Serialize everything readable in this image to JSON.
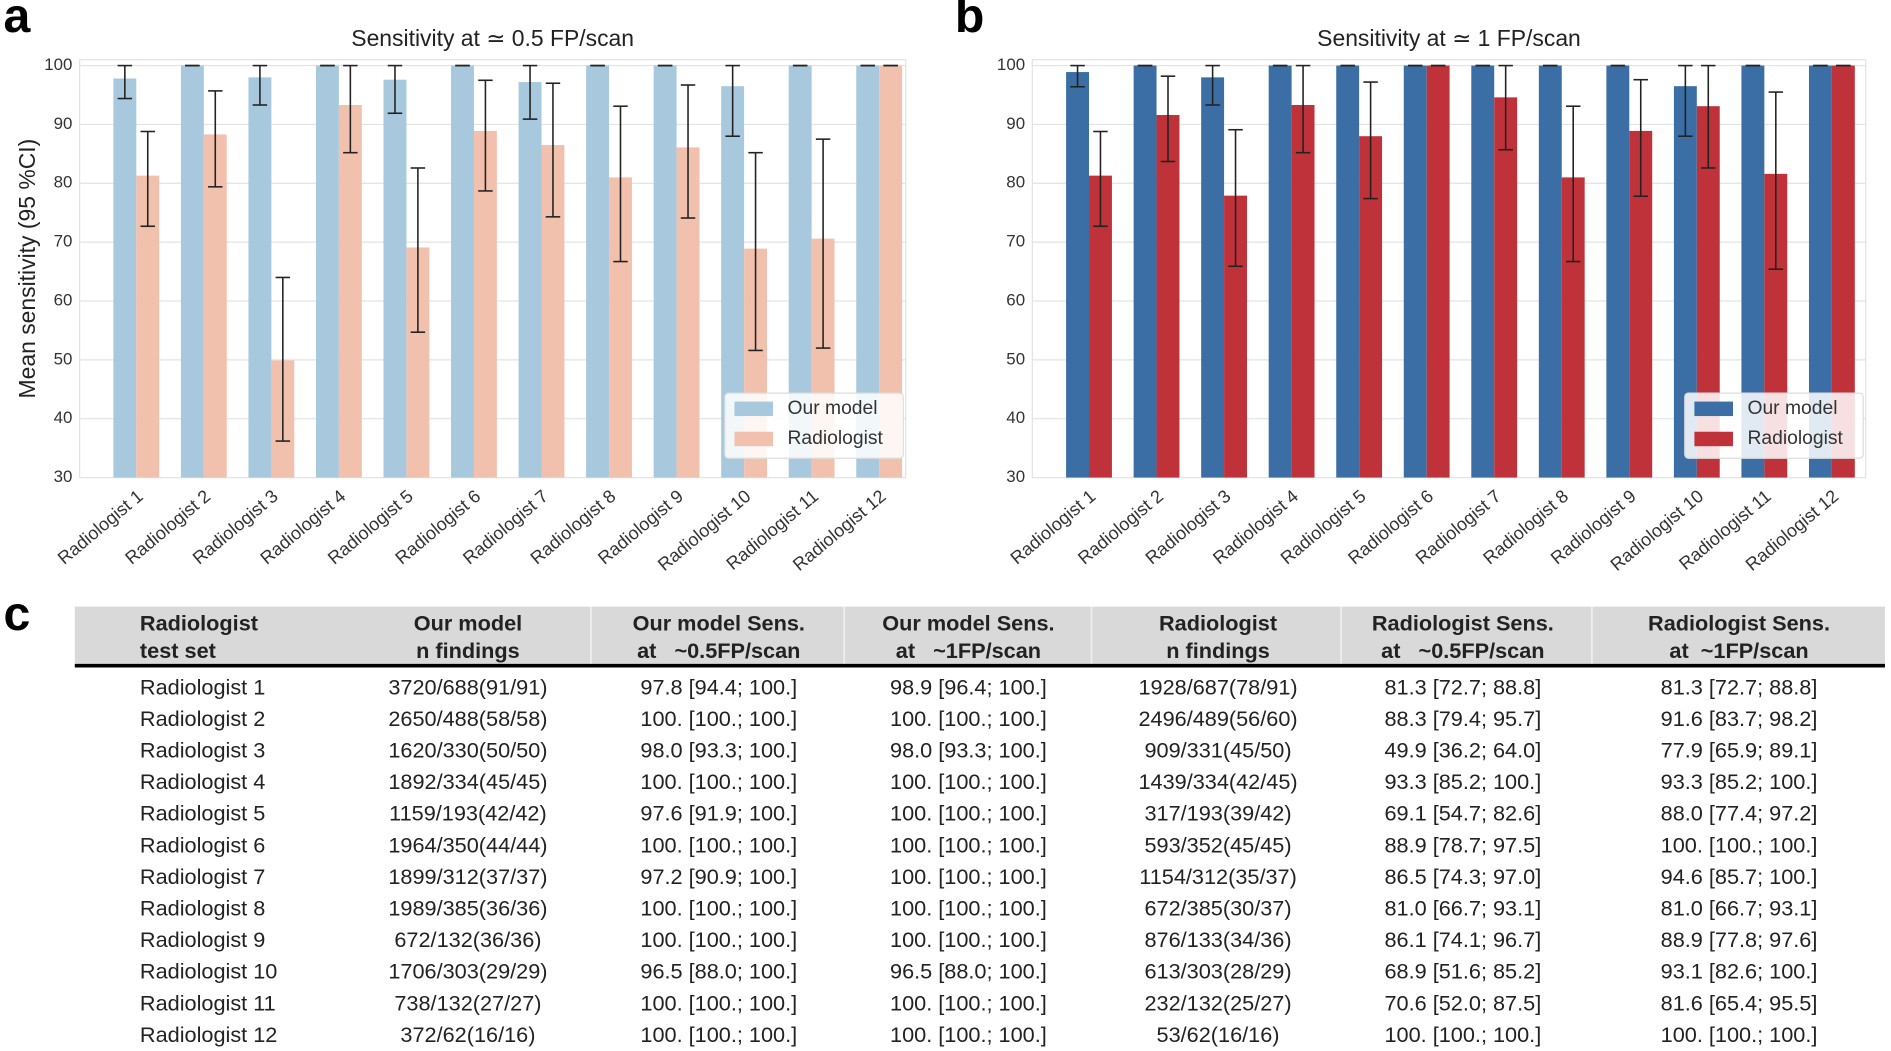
{
  "chart_data": [
    {
      "type": "bar",
      "panel_label": "a",
      "title": "Sensitivity at ≃ 0.5 FP/scan",
      "ylabel": "Mean sensitivity (95 %CI)",
      "categories": [
        "Radiologist 1",
        "Radiologist 2",
        "Radiologist 3",
        "Radiologist 4",
        "Radiologist 5",
        "Radiologist 6",
        "Radiologist 7",
        "Radiologist 8",
        "Radiologist 9",
        "Radiologist 10",
        "Radiologist 11",
        "Radiologist 12"
      ],
      "series": [
        {
          "name": "Our model",
          "color": "#a7c8dd",
          "values": [
            97.8,
            100,
            98.0,
            100,
            97.6,
            100,
            97.2,
            100,
            100,
            96.5,
            100,
            100
          ],
          "ci_low": [
            94.4,
            100,
            93.3,
            100,
            91.9,
            100,
            90.9,
            100,
            100,
            88.0,
            100,
            100
          ],
          "ci_high": [
            100,
            100,
            100,
            100,
            100,
            100,
            100,
            100,
            100,
            100,
            100,
            100
          ]
        },
        {
          "name": "Radiologist",
          "color": "#f2c1ad",
          "values": [
            81.3,
            88.3,
            49.9,
            93.3,
            69.1,
            88.9,
            86.5,
            81.0,
            86.1,
            68.9,
            70.6,
            100
          ],
          "ci_low": [
            72.7,
            79.4,
            36.2,
            85.2,
            54.7,
            78.7,
            74.3,
            66.7,
            74.1,
            51.6,
            52.0,
            100
          ],
          "ci_high": [
            88.8,
            95.7,
            64.0,
            100,
            82.6,
            97.5,
            97.0,
            93.1,
            96.7,
            85.2,
            87.5,
            100
          ]
        }
      ],
      "ylim": [
        30,
        101
      ],
      "yticks": [
        30,
        40,
        50,
        60,
        70,
        80,
        90,
        100
      ],
      "grid": true,
      "legend": "lower right"
    },
    {
      "type": "bar",
      "panel_label": "b",
      "title": "Sensitivity at ≃ 1 FP/scan",
      "categories": [
        "Radiologist 1",
        "Radiologist 2",
        "Radiologist 3",
        "Radiologist 4",
        "Radiologist 5",
        "Radiologist 6",
        "Radiologist 7",
        "Radiologist 8",
        "Radiologist 9",
        "Radiologist 10",
        "Radiologist 11",
        "Radiologist 12"
      ],
      "series": [
        {
          "name": "Our model",
          "color": "#3a6ea5",
          "values": [
            98.9,
            100,
            98.0,
            100,
            100,
            100,
            100,
            100,
            100,
            96.5,
            100,
            100
          ],
          "ci_low": [
            96.4,
            100,
            93.3,
            100,
            100,
            100,
            100,
            100,
            100,
            88.0,
            100,
            100
          ],
          "ci_high": [
            100,
            100,
            100,
            100,
            100,
            100,
            100,
            100,
            100,
            100,
            100,
            100
          ]
        },
        {
          "name": "Radiologist",
          "color": "#c0323a",
          "values": [
            81.3,
            91.6,
            77.9,
            93.3,
            88.0,
            100,
            94.6,
            81.0,
            88.9,
            93.1,
            81.6,
            100
          ],
          "ci_low": [
            72.7,
            83.7,
            65.9,
            85.2,
            77.4,
            100,
            85.7,
            66.7,
            77.8,
            82.6,
            65.4,
            100
          ],
          "ci_high": [
            88.8,
            98.2,
            89.1,
            100,
            97.2,
            100,
            100,
            93.1,
            97.6,
            100,
            95.5,
            100
          ]
        }
      ],
      "ylim": [
        30,
        101
      ],
      "yticks": [
        30,
        40,
        50,
        60,
        70,
        80,
        90,
        100
      ],
      "grid": true,
      "legend": "lower right"
    }
  ],
  "table": {
    "panel_label": "c",
    "header": [
      [
        "Radiologist",
        "test set"
      ],
      [
        "Our model",
        "n findings"
      ],
      [
        "Our model Sens.",
        "at   ~0.5FP/scan"
      ],
      [
        "Our model Sens.",
        "at   ~1FP/scan"
      ],
      [
        "Radiologist",
        "n findings"
      ],
      [
        "Radiologist Sens.",
        "at   ~0.5FP/scan"
      ],
      [
        "Radiologist Sens.",
        "at  ~1FP/scan"
      ]
    ],
    "rows": [
      [
        "Radiologist 1",
        "3720/688(91/91)",
        "97.8 [94.4; 100.]",
        "98.9 [96.4; 100.]",
        "1928/687(78/91)",
        "81.3 [72.7; 88.8]",
        "81.3 [72.7; 88.8]"
      ],
      [
        "Radiologist 2",
        "2650/488(58/58)",
        "100. [100.; 100.]",
        "100. [100.; 100.]",
        "2496/489(56/60)",
        "88.3 [79.4; 95.7]",
        "91.6 [83.7; 98.2]"
      ],
      [
        "Radiologist 3",
        "1620/330(50/50)",
        "98.0 [93.3; 100.]",
        "98.0 [93.3; 100.]",
        "909/331(45/50)",
        "49.9 [36.2; 64.0]",
        "77.9 [65.9; 89.1]"
      ],
      [
        "Radiologist 4",
        "1892/334(45/45)",
        "100. [100.; 100.]",
        "100. [100.; 100.]",
        "1439/334(42/45)",
        "93.3 [85.2; 100.]",
        "93.3 [85.2; 100.]"
      ],
      [
        "Radiologist 5",
        "1159/193(42/42)",
        "97.6 [91.9; 100.]",
        "100. [100.; 100.]",
        "317/193(39/42)",
        "69.1 [54.7; 82.6]",
        "88.0 [77.4; 97.2]"
      ],
      [
        "Radiologist 6",
        "1964/350(44/44)",
        "100. [100.; 100.]",
        "100. [100.; 100.]",
        "593/352(45/45)",
        "88.9 [78.7; 97.5]",
        "100. [100.; 100.]"
      ],
      [
        "Radiologist 7",
        "1899/312(37/37)",
        "97.2 [90.9; 100.]",
        "100. [100.; 100.]",
        "1154/312(35/37)",
        "86.5 [74.3; 97.0]",
        "94.6 [85.7; 100.]"
      ],
      [
        "Radiologist 8",
        "1989/385(36/36)",
        "100. [100.; 100.]",
        "100. [100.; 100.]",
        "672/385(30/37)",
        "81.0 [66.7; 93.1]",
        "81.0 [66.7; 93.1]"
      ],
      [
        "Radiologist 9",
        "672/132(36/36)",
        "100. [100.; 100.]",
        "100. [100.; 100.]",
        "876/133(34/36)",
        "86.1 [74.1; 96.7]",
        "88.9 [77.8; 97.6]"
      ],
      [
        "Radiologist 10",
        "1706/303(29/29)",
        "96.5 [88.0; 100.]",
        "96.5 [88.0; 100.]",
        "613/303(28/29)",
        "68.9 [51.6; 85.2]",
        "93.1 [82.6; 100.]"
      ],
      [
        "Radiologist 11",
        "738/132(27/27)",
        "100. [100.; 100.]",
        "100. [100.; 100.]",
        "232/132(25/27)",
        "70.6 [52.0; 87.5]",
        "81.6 [65.4; 95.5]"
      ],
      [
        "Radiologist 12",
        "372/62(16/16)",
        "100. [100.; 100.]",
        "100. [100.; 100.]",
        "53/62(16/16)",
        "100. [100.; 100.]",
        "100. [100.; 100.]"
      ]
    ]
  }
}
